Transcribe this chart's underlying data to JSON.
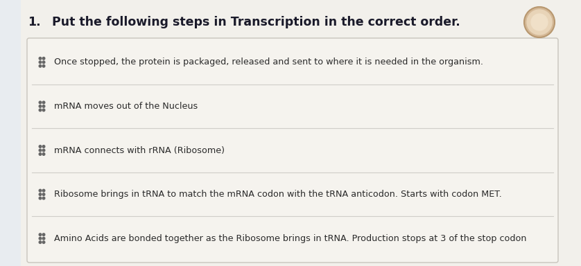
{
  "question_number": "1.",
  "question_text": "Put the following steps in Transcription in the correct order.",
  "items": [
    "Once stopped, the protein is packaged, released and sent to where it is needed in the organism.",
    "mRNA moves out of the Nucleus",
    "mRNA connects with rRNA (Ribosome)",
    "Ribosome brings in tRNA to match the mRNA codon with the tRNA anticodon. Starts with codon MET.",
    "Amino Acids are bonded together as the Ribosome brings in tRNA. Production stops at 3 of the stop codon"
  ],
  "page_bg": "#e8ecf0",
  "content_bg": "#f2f0eb",
  "box_bg": "#f5f3ee",
  "row_border": "#d0cec8",
  "box_border": "#c8c4bc",
  "text_color": "#2a2a2a",
  "title_color": "#1a1a2a",
  "dot_color": "#666666",
  "fig_width": 8.38,
  "fig_height": 3.84,
  "title_fontsize": 12.5,
  "item_fontsize": 9.2
}
